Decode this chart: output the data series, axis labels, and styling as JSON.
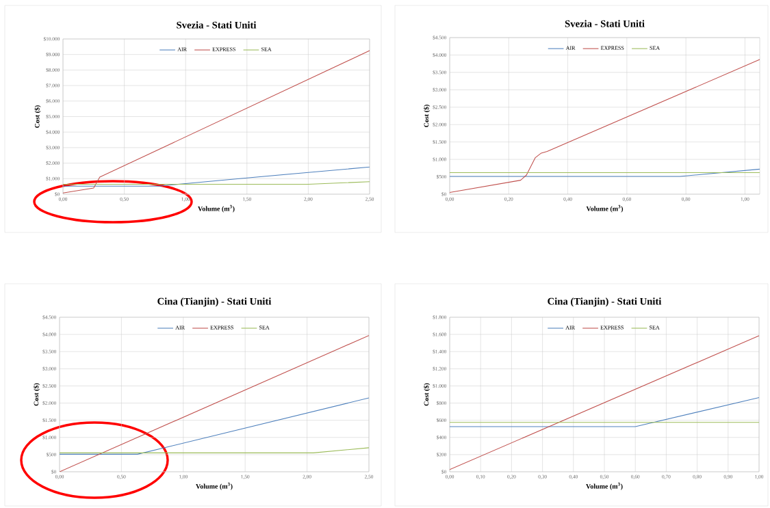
{
  "chart_data": [
    {
      "type": "line",
      "title": "Svezia - Stati Uniti",
      "xlabel": "Volume (m$^{3}$)",
      "ylabel": "Cost ($)",
      "grid": true,
      "legend": "top",
      "xlim": [
        0,
        2.5
      ],
      "ylim": [
        0,
        10000
      ],
      "xticks": [
        {
          "value": 0,
          "label": "0,00"
        },
        {
          "value": 0.5,
          "label": "0,50"
        },
        {
          "value": 1,
          "label": "1,00"
        },
        {
          "value": 1.5,
          "label": "1,50"
        },
        {
          "value": 2,
          "label": "2,00"
        },
        {
          "value": 2.5,
          "label": "2,50"
        }
      ],
      "yticks": [
        {
          "value": 0,
          "label": "$0"
        },
        {
          "value": 1000,
          "label": "$1.000"
        },
        {
          "value": 2000,
          "label": "$2.000"
        },
        {
          "value": 3000,
          "label": "$3.000"
        },
        {
          "value": 4000,
          "label": "$4.000"
        },
        {
          "value": 5000,
          "label": "$5.000"
        },
        {
          "value": 6000,
          "label": "$6.000"
        },
        {
          "value": 7000,
          "label": "$7.000"
        },
        {
          "value": 8000,
          "label": "$8.000"
        },
        {
          "value": 9000,
          "label": "$9.000"
        },
        {
          "value": 10000,
          "label": "$10.000"
        }
      ],
      "series": [
        {
          "name": "AIR",
          "color": "#4f81bd",
          "x": [
            0,
            0.78,
            1.0,
            1.5,
            2.0,
            2.5
          ],
          "values": [
            520,
            520,
            680,
            1050,
            1400,
            1750
          ]
        },
        {
          "name": "EXPRESS",
          "color": "#c0504d",
          "x": [
            0,
            0.25,
            0.3,
            2.5
          ],
          "values": [
            80,
            400,
            1100,
            9250
          ]
        },
        {
          "name": "SEA",
          "color": "#9bbb59",
          "x": [
            0,
            2.0,
            2.5
          ],
          "values": [
            640,
            640,
            800
          ]
        }
      ]
    },
    {
      "type": "line",
      "title": "Svezia - Stati Uniti",
      "xlabel": "Volume (m$^{3}$)",
      "ylabel": "Cost ($)",
      "grid": true,
      "legend": "top",
      "xlim": [
        0,
        1.05
      ],
      "ylim": [
        0,
        4500
      ],
      "xticks": [
        {
          "value": 0,
          "label": "0,00"
        },
        {
          "value": 0.2,
          "label": "0,20"
        },
        {
          "value": 0.4,
          "label": "0,40"
        },
        {
          "value": 0.6,
          "label": "0,60"
        },
        {
          "value": 0.8,
          "label": "0,80"
        },
        {
          "value": 1.0,
          "label": "1,00"
        }
      ],
      "yticks": [
        {
          "value": 0,
          "label": "$0"
        },
        {
          "value": 500,
          "label": "$500"
        },
        {
          "value": 1000,
          "label": "$1.000"
        },
        {
          "value": 1500,
          "label": "$1.500"
        },
        {
          "value": 2000,
          "label": "$2.000"
        },
        {
          "value": 2500,
          "label": "$2.500"
        },
        {
          "value": 3000,
          "label": "$3.000"
        },
        {
          "value": 3500,
          "label": "$3.500"
        },
        {
          "value": 4000,
          "label": "$4.000"
        },
        {
          "value": 4500,
          "label": "$4.500"
        }
      ],
      "series": [
        {
          "name": "AIR",
          "color": "#4f81bd",
          "x": [
            0,
            0.78,
            1.05
          ],
          "values": [
            510,
            510,
            720
          ]
        },
        {
          "name": "EXPRESS",
          "color": "#c0504d",
          "x": [
            0,
            0.24,
            0.26,
            0.29,
            0.31,
            0.33,
            1.05
          ],
          "values": [
            50,
            400,
            550,
            1050,
            1180,
            1230,
            3870
          ]
        },
        {
          "name": "SEA",
          "color": "#9bbb59",
          "x": [
            0,
            1.05
          ],
          "values": [
            620,
            620
          ]
        }
      ]
    },
    {
      "type": "line",
      "title": "Cina (Tianjin) - Stati Uniti",
      "xlabel": "Volume (m$^{3}$)",
      "ylabel": "Cost ($)",
      "grid": true,
      "legend": "top",
      "xlim": [
        0,
        2.5
      ],
      "ylim": [
        0,
        4500
      ],
      "xticks": [
        {
          "value": 0,
          "label": "0,00"
        },
        {
          "value": 0.5,
          "label": "0,50"
        },
        {
          "value": 1,
          "label": "1,00"
        },
        {
          "value": 1.5,
          "label": "1,50"
        },
        {
          "value": 2,
          "label": "2,00"
        },
        {
          "value": 2.5,
          "label": "2,50"
        }
      ],
      "yticks": [
        {
          "value": 0,
          "label": "$0"
        },
        {
          "value": 500,
          "label": "$500"
        },
        {
          "value": 1000,
          "label": "$1.000"
        },
        {
          "value": 1500,
          "label": "$1.500"
        },
        {
          "value": 2000,
          "label": "$2.000"
        },
        {
          "value": 2500,
          "label": "$2.500"
        },
        {
          "value": 3000,
          "label": "$3.000"
        },
        {
          "value": 3500,
          "label": "$3.500"
        },
        {
          "value": 4000,
          "label": "$4.000"
        },
        {
          "value": 4500,
          "label": "$4.500"
        }
      ],
      "series": [
        {
          "name": "AIR",
          "color": "#4f81bd",
          "x": [
            0,
            0.63,
            2.5
          ],
          "values": [
            510,
            510,
            2150
          ]
        },
        {
          "name": "EXPRESS",
          "color": "#c0504d",
          "x": [
            0,
            2.5
          ],
          "values": [
            0,
            3970
          ]
        },
        {
          "name": "SEA",
          "color": "#9bbb59",
          "x": [
            0,
            2.05,
            2.5
          ],
          "values": [
            550,
            550,
            700
          ]
        }
      ]
    },
    {
      "type": "line",
      "title": "Cina (Tianjin) - Stati Uniti",
      "xlabel": "Volume (m$^{3}$)",
      "ylabel": "Cost ($)",
      "grid": true,
      "legend": "top",
      "xlim": [
        0,
        1.0
      ],
      "ylim": [
        0,
        1800
      ],
      "xticks": [
        {
          "value": 0,
          "label": "0,00"
        },
        {
          "value": 0.1,
          "label": "0,10"
        },
        {
          "value": 0.2,
          "label": "0,20"
        },
        {
          "value": 0.3,
          "label": "0,30"
        },
        {
          "value": 0.4,
          "label": "0,40"
        },
        {
          "value": 0.5,
          "label": "0,50"
        },
        {
          "value": 0.6,
          "label": "0,60"
        },
        {
          "value": 0.7,
          "label": "0,70"
        },
        {
          "value": 0.8,
          "label": "0,80"
        },
        {
          "value": 0.9,
          "label": "0,90"
        },
        {
          "value": 1.0,
          "label": "1,00"
        }
      ],
      "yticks": [
        {
          "value": 0,
          "label": "$0"
        },
        {
          "value": 200,
          "label": "$200"
        },
        {
          "value": 400,
          "label": "$400"
        },
        {
          "value": 600,
          "label": "$600"
        },
        {
          "value": 800,
          "label": "$800"
        },
        {
          "value": 1000,
          "label": "$1.000"
        },
        {
          "value": 1200,
          "label": "$1.200"
        },
        {
          "value": 1400,
          "label": "$1.400"
        },
        {
          "value": 1600,
          "label": "$1.600"
        },
        {
          "value": 1800,
          "label": "$1.800"
        }
      ],
      "series": [
        {
          "name": "AIR",
          "color": "#4f81bd",
          "x": [
            0,
            0.6,
            1.0
          ],
          "values": [
            525,
            525,
            865
          ]
        },
        {
          "name": "EXPRESS",
          "color": "#c0504d",
          "x": [
            0,
            1.0
          ],
          "values": [
            25,
            1585
          ]
        },
        {
          "name": "SEA",
          "color": "#9bbb59",
          "x": [
            0,
            1.0
          ],
          "values": [
            575,
            575
          ]
        }
      ]
    }
  ]
}
